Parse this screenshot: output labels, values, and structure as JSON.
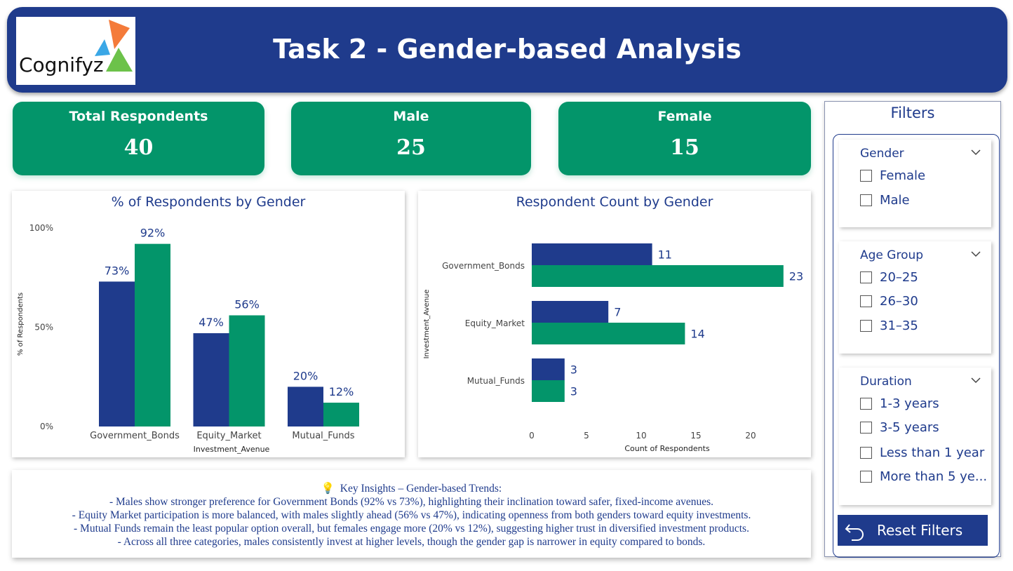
{
  "header": {
    "title": "Task 2 - Gender-based Analysis",
    "logo_text": "Cognifyz"
  },
  "kpis": [
    {
      "label": "Total Respondents",
      "value": "40"
    },
    {
      "label": "Male",
      "value": "25"
    },
    {
      "label": "Female",
      "value": "15"
    }
  ],
  "colors": {
    "male": "#1f3b8c",
    "female": "#03956a",
    "header": "#1f3b8c"
  },
  "chart_data": [
    {
      "type": "bar",
      "title": "% of Respondents by Gender",
      "xlabel": "Investment_Avenue",
      "ylabel": "% of Respondents",
      "categories": [
        "Government_Bonds",
        "Equity_Market",
        "Mutual_Funds"
      ],
      "series": [
        {
          "values": [
            73,
            47,
            20
          ],
          "labels": [
            "73%",
            "47%",
            "20%"
          ]
        },
        {
          "values": [
            92,
            56,
            12
          ],
          "labels": [
            "92%",
            "56%",
            "12%"
          ]
        }
      ],
      "yticks": [
        "0%",
        "50%",
        "100%"
      ],
      "ylim": [
        0,
        100
      ],
      "grid": false
    },
    {
      "type": "bar",
      "orientation": "horizontal",
      "title": "Respondent Count by Gender",
      "xlabel": "Count of Respondents",
      "ylabel": "Investment_Avenue",
      "categories": [
        "Government_Bonds",
        "Equity_Market",
        "Mutual_Funds"
      ],
      "series": [
        {
          "values": [
            11,
            7,
            3
          ]
        },
        {
          "values": [
            23,
            14,
            3
          ]
        }
      ],
      "xticks": [
        0,
        5,
        10,
        15,
        20
      ],
      "xlim": [
        0,
        23
      ],
      "grid": false
    }
  ],
  "insights": {
    "title": "Key Insights – Gender-based Trends:",
    "lines": [
      "- Males show stronger preference for Government Bonds (92% vs 73%), highlighting their inclination toward safer, fixed-income avenues.",
      "- Equity Market participation is more balanced, with males slightly ahead (56% vs 47%), indicating openness from both genders toward equity investments.",
      "- Mutual Funds remain the least popular option overall, but females engage more (20% vs 12%), suggesting higher trust in diversified investment products.",
      "- Across all three categories, males consistently invest at higher levels, though the gender gap is narrower in equity compared to bonds."
    ]
  },
  "filters": {
    "title": "Filters",
    "slicers": [
      {
        "title": "Gender",
        "options": [
          "Female",
          "Male"
        ]
      },
      {
        "title": "Age Group",
        "options": [
          "20–25",
          "26–30",
          "31–35"
        ]
      },
      {
        "title": "Duration",
        "options": [
          "1-3 years",
          "3-5 years",
          "Less than 1 year",
          "More than 5 ye..."
        ]
      }
    ],
    "reset_label": "Reset Filters"
  }
}
